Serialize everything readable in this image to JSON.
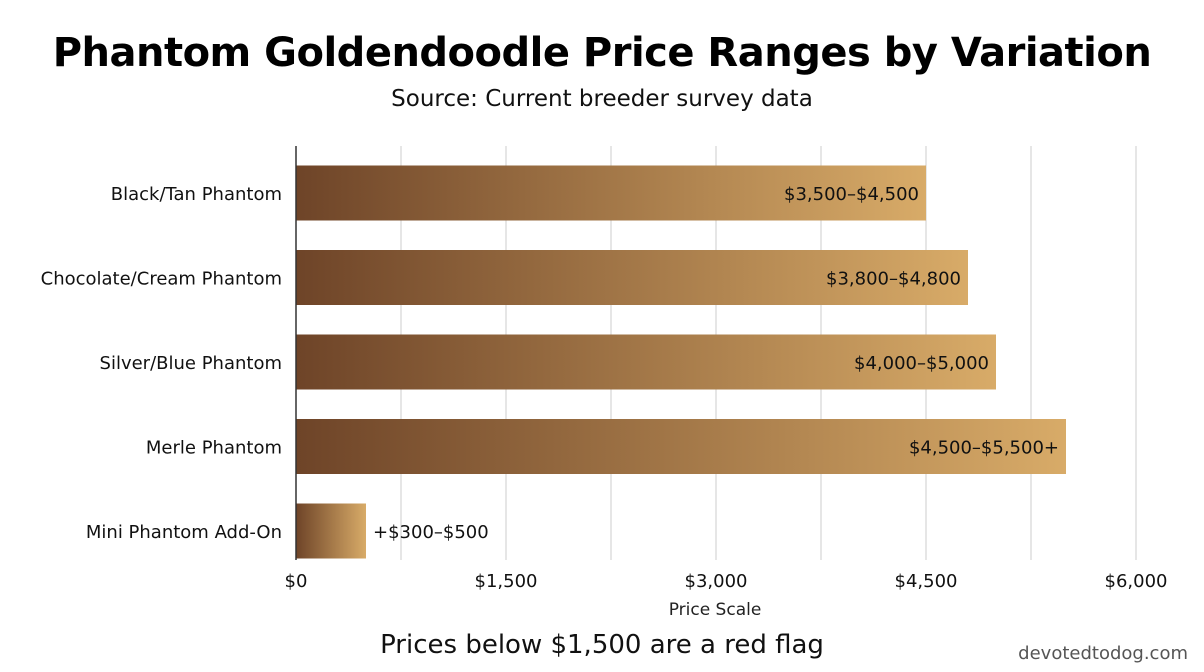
{
  "colors": {
    "bar_start": "#6e4428",
    "bar_end": "#d8ab68",
    "grid": "#dddddd",
    "axis": "#333333",
    "text": "#111111"
  },
  "watermark": "devotedtodog.com",
  "footnote": "Prices below $1,500 are a red flag",
  "chart_data": {
    "type": "bar",
    "orientation": "horizontal",
    "title": "Phantom Goldendoodle Price Ranges by Variation",
    "subtitle": "Source: Current breeder survey data",
    "xlabel": "Price Scale",
    "ylabel": "",
    "xlim": [
      0,
      6000
    ],
    "xticks": [
      0,
      1500,
      3000,
      4500,
      6000
    ],
    "xtick_labels": [
      "$0",
      "$1,500",
      "$3,000",
      "$4,500",
      "$6,000"
    ],
    "grid": true,
    "categories": [
      "Black/Tan Phantom",
      "Chocolate/Cream Phantom",
      "Silver/Blue Phantom",
      "Merle Phantom",
      "Mini Phantom Add-On"
    ],
    "values": [
      4500,
      4800,
      5000,
      5500,
      500
    ],
    "labels": [
      "$3,500–$4,500",
      "$3,800–$4,800",
      "$4,000–$5,000",
      "$4,500–$5,500+",
      "+$300–$500"
    ]
  }
}
